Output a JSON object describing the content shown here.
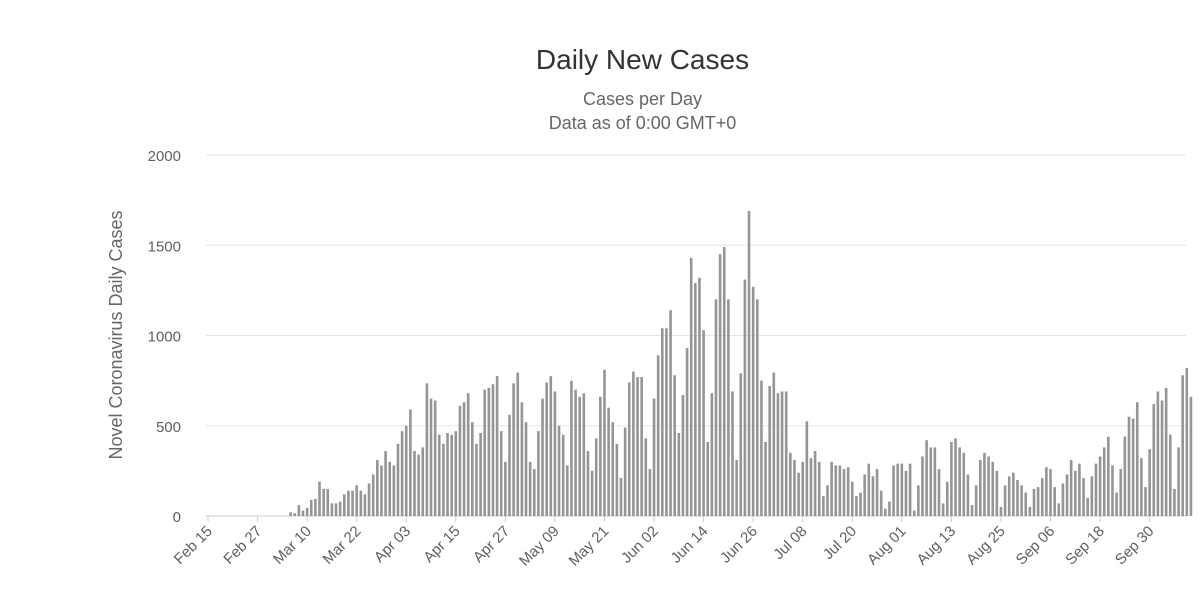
{
  "chart_data": {
    "type": "bar",
    "title": "Daily New Cases",
    "subtitle": [
      "Cases per Day",
      "Data as of 0:00 GMT+0"
    ],
    "xlabel": "",
    "ylabel": "Novel Coronavirus Daily Cases",
    "ylim": [
      0,
      2000
    ],
    "yticks": [
      0,
      500,
      1000,
      1500,
      2000
    ],
    "grid": true,
    "legend": "none",
    "bar_color": "#959595",
    "start_date": "Feb 15",
    "xtick_labels": [
      "Feb 15",
      "Feb 27",
      "Mar 10",
      "Mar 22",
      "Apr 03",
      "Apr 15",
      "Apr 27",
      "May 09",
      "May 21",
      "Jun 02",
      "Jun 14",
      "Jun 26",
      "Jul 08",
      "Jul 20",
      "Aug 01",
      "Aug 13",
      "Aug 25",
      "Sep 06",
      "Sep 18",
      "Sep 30"
    ],
    "values": [
      0,
      0,
      0,
      0,
      0,
      0,
      0,
      0,
      0,
      0,
      0,
      0,
      0,
      0,
      0,
      0,
      0,
      0,
      0,
      0,
      20,
      15,
      60,
      30,
      45,
      90,
      95,
      190,
      150,
      150,
      70,
      70,
      80,
      120,
      140,
      140,
      170,
      140,
      120,
      180,
      230,
      310,
      280,
      360,
      300,
      280,
      400,
      470,
      500,
      590,
      360,
      340,
      380,
      735,
      650,
      640,
      450,
      400,
      460,
      450,
      470,
      610,
      630,
      680,
      520,
      400,
      460,
      700,
      710,
      730,
      775,
      470,
      300,
      560,
      735,
      795,
      630,
      520,
      300,
      260,
      470,
      650,
      740,
      775,
      690,
      500,
      450,
      280,
      750,
      700,
      660,
      680,
      360,
      250,
      430,
      660,
      810,
      600,
      520,
      400,
      210,
      490,
      740,
      800,
      770,
      770,
      430,
      260,
      650,
      890,
      1040,
      1040,
      1140,
      780,
      460,
      670,
      930,
      1430,
      1290,
      1320,
      1030,
      410,
      680,
      1200,
      1450,
      1490,
      1200,
      690,
      310,
      790,
      1310,
      1690,
      1270,
      1200,
      750,
      410,
      720,
      795,
      680,
      690,
      690,
      350,
      310,
      240,
      300,
      525,
      320,
      360,
      300,
      110,
      170,
      300,
      280,
      280,
      260,
      270,
      190,
      110,
      130,
      230,
      290,
      220,
      260,
      140,
      40,
      80,
      280,
      290,
      290,
      250,
      290,
      30,
      170,
      330,
      420,
      380,
      380,
      260,
      70,
      190,
      410,
      430,
      380,
      350,
      230,
      60,
      170,
      310,
      350,
      330,
      300,
      250,
      50,
      170,
      220,
      240,
      200,
      170,
      130,
      50,
      150,
      160,
      210,
      270,
      260,
      160,
      70,
      180,
      230,
      310,
      250,
      290,
      210,
      100,
      220,
      290,
      330,
      380,
      440,
      280,
      130,
      260,
      440,
      550,
      540,
      630,
      320,
      160,
      370,
      620,
      690,
      640,
      710,
      450,
      150,
      380,
      780,
      820,
      660
    ]
  }
}
